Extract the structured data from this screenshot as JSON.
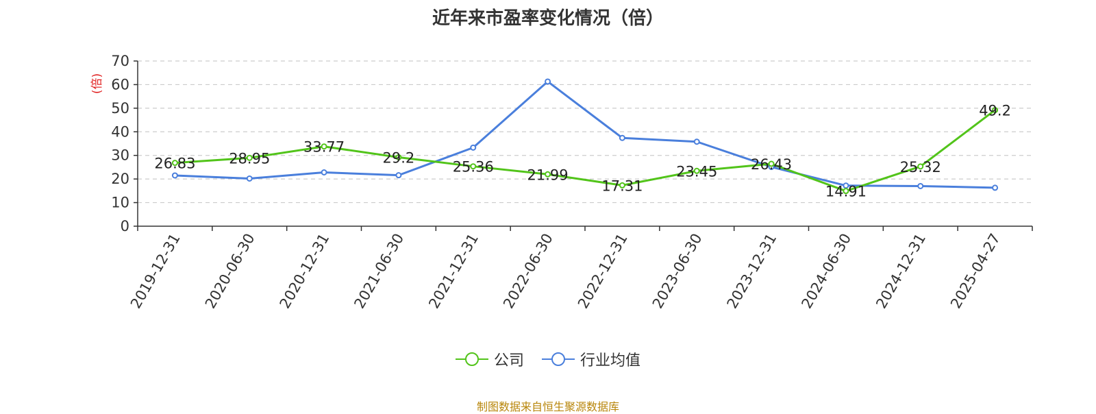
{
  "chart_data": {
    "type": "line",
    "title": "近年来市盈率变化情况（倍）",
    "ylabel": "(倍)",
    "ylim": [
      0,
      70
    ],
    "yticks": [
      0,
      10,
      20,
      30,
      40,
      50,
      60,
      70
    ],
    "grid": true,
    "legend_position": "bottom",
    "categories": [
      "2019-12-31",
      "2020-06-30",
      "2020-12-31",
      "2021-06-30",
      "2021-12-31",
      "2022-06-30",
      "2022-12-31",
      "2023-06-30",
      "2023-12-31",
      "2024-06-30",
      "2024-12-31",
      "2025-04-27"
    ],
    "series": [
      {
        "name": "公司",
        "color": "#52c41a",
        "values": [
          26.83,
          28.95,
          33.77,
          29.2,
          25.36,
          21.99,
          17.31,
          23.45,
          26.43,
          14.91,
          25.32,
          49.2
        ],
        "labels": [
          "26.83",
          "28.95",
          "33.77",
          "29.2",
          "25.36",
          "21.99",
          "17.31",
          "23.45",
          "26.43",
          "14.91",
          "25.32",
          "49.2"
        ]
      },
      {
        "name": "行业均值",
        "color": "#4a7fdc",
        "values": [
          21.5,
          20.2,
          22.8,
          21.6,
          33.3,
          61.3,
          37.4,
          35.8,
          25.1,
          17.2,
          17.0,
          16.3
        ]
      }
    ]
  },
  "footer": {
    "source": "制图数据来自恒生聚源数据库"
  }
}
